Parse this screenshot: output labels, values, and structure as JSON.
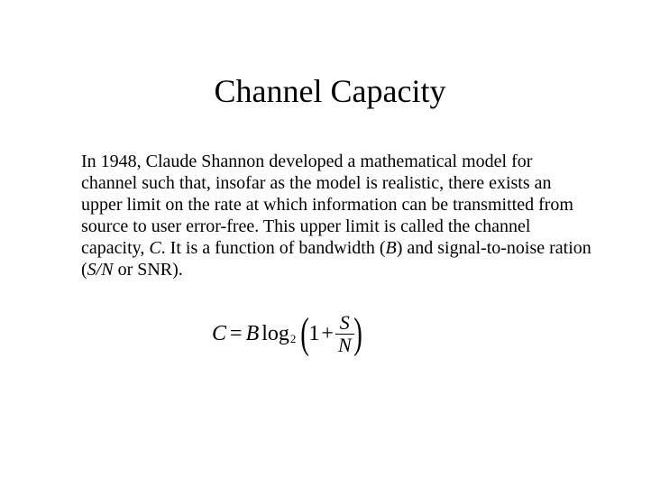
{
  "title": "Channel Capacity",
  "paragraph": {
    "part1": "In 1948, Claude Shannon developed a mathematical model for channel such that, insofar as the model is realistic, there exists an upper limit on the rate at which information can be transmitted from source to user error-free.  This upper limit is called the channel capacity, ",
    "C": "C",
    "part2": ".  It is a function of bandwidth (",
    "B": "B",
    "part3": ") and signal-to-noise ration (",
    "SN": "S/N",
    "part4": " or SNR)."
  },
  "formula": {
    "C": "C",
    "eq": "=",
    "B": "B",
    "log": "log",
    "base": "2",
    "lparen": "(",
    "one": "1",
    "plus": "+",
    "S": "S",
    "N": "N",
    "rparen": ")"
  },
  "styling": {
    "background_color": "#ffffff",
    "text_color": "#000000",
    "title_fontsize": 36,
    "body_fontsize": 20,
    "formula_fontsize": 24,
    "font_family": "Times New Roman"
  }
}
